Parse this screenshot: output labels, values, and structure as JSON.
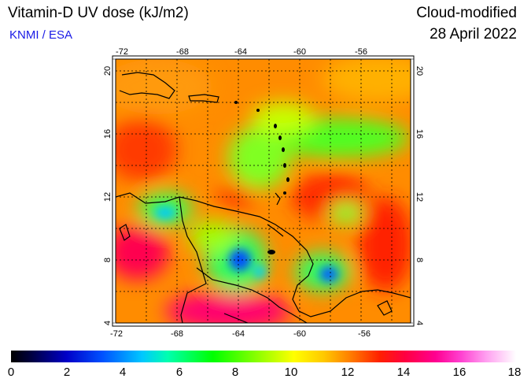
{
  "header": {
    "title": "Vitamin-D UV dose (kJ/m2)",
    "credit": "KNMI / ESA",
    "mode": "Cloud-modified",
    "date": "28 April 2022"
  },
  "map": {
    "region": "Caribbean / northern South America",
    "lon_range": [
      -73,
      -53
    ],
    "lat_range": [
      3.5,
      21
    ],
    "lon_ticks": [
      "-72",
      "-68",
      "-64",
      "-60",
      "-56"
    ],
    "lat_ticks": [
      "20",
      "16",
      "12",
      "8",
      "4"
    ],
    "gridlines": true
  },
  "colorbar": {
    "labels": [
      "0",
      "2",
      "4",
      "6",
      "8",
      "10",
      "12",
      "14",
      "16",
      "18"
    ],
    "min": 0,
    "max": 18,
    "colors": [
      "#000000",
      "#0000c8",
      "#00c8ff",
      "#00ff00",
      "#ffff00",
      "#ff8000",
      "#ff2000",
      "#ff0090",
      "#ff9ef0",
      "#ffffff"
    ]
  }
}
